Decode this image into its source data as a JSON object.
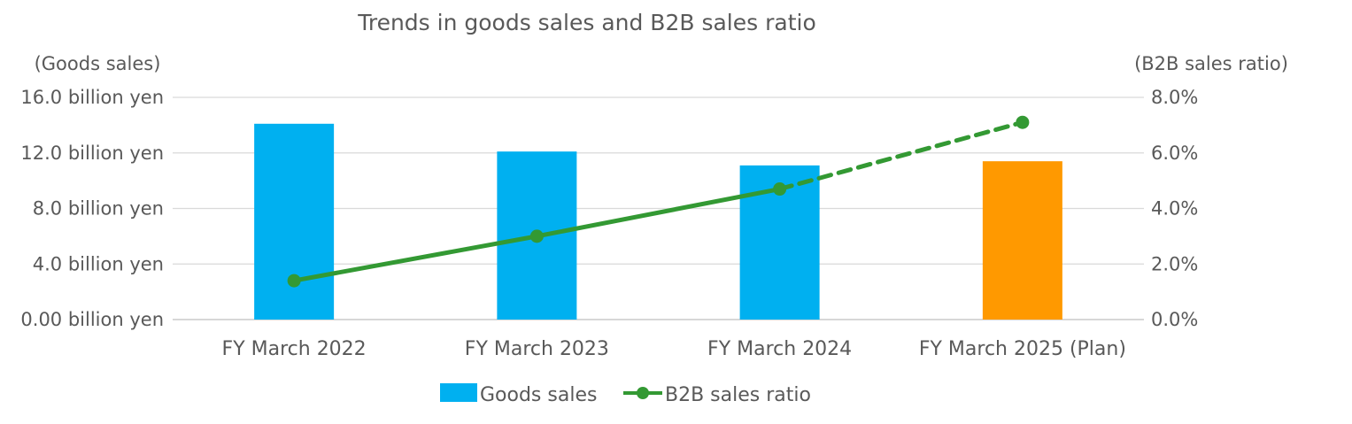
{
  "chart_data": {
    "type": "bar",
    "title": "Trends in goods sales and B2B sales ratio",
    "y_left_label": "(Goods sales)",
    "y_right_label": "(B2B sales ratio)",
    "categories": [
      "FY March 2022",
      "FY March 2023",
      "FY March 2024",
      "FY March 2025 (Plan)"
    ],
    "y_left_ticks": [
      "0.00 billion yen",
      "4.0 billion yen",
      "8.0 billion yen",
      "12.0 billion yen",
      "16.0 billion yen"
    ],
    "y_right_ticks": [
      "0.0%",
      "2.0%",
      "4.0%",
      "6.0%",
      "8.0%"
    ],
    "y_left_lim": [
      0,
      16
    ],
    "y_right_lim": [
      0,
      8
    ],
    "grid": true,
    "legend_position": "bottom",
    "series": [
      {
        "name": "Goods sales",
        "kind": "bar",
        "axis": "left",
        "unit": "billion yen",
        "values": [
          14.1,
          12.1,
          11.1,
          11.4
        ],
        "colors": [
          "#00b0f0",
          "#00b0f0",
          "#00b0f0",
          "#ff9900"
        ]
      },
      {
        "name": "B2B sales ratio",
        "kind": "line",
        "axis": "right",
        "unit": "%",
        "values": [
          1.4,
          3.0,
          4.7,
          7.1
        ],
        "color": "#339933",
        "dashed_from_index": 2
      }
    ]
  }
}
